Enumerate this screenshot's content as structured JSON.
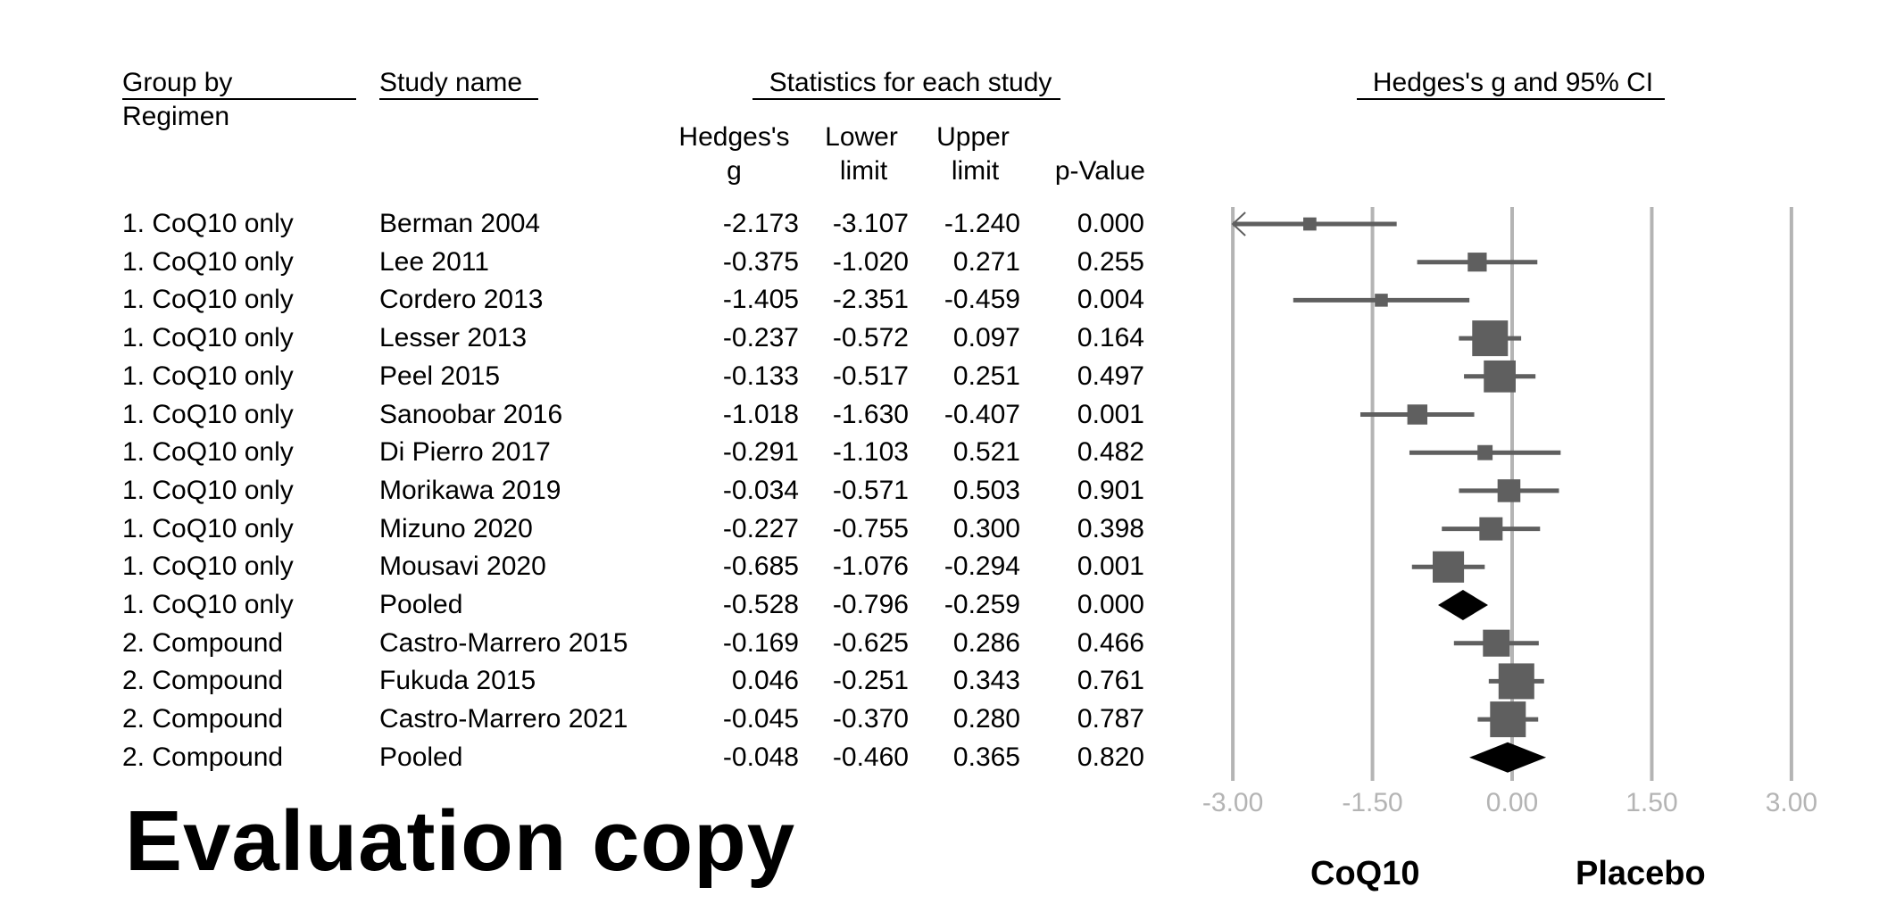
{
  "headers": {
    "group_by": "Group by",
    "regimen": "Regimen",
    "study_name": "Study name",
    "stats": "Statistics for each study",
    "g_1": "Hedges's",
    "g_2": "g",
    "lower_1": "Lower",
    "lower_2": "limit",
    "upper_1": "Upper",
    "upper_2": "limit",
    "p": "p-Value",
    "plot_title": "Hedges's g and 95% CI"
  },
  "chart_data": {
    "type": "forest",
    "title": "Hedges's g and 95% CI",
    "xlim": [
      -3,
      3
    ],
    "xticks": [
      "-3.00",
      "-1.50",
      "0.00",
      "1.50",
      "3.00"
    ],
    "xtick_values": [
      -3,
      -1.5,
      0,
      1.5,
      3
    ],
    "left_label": "CoQ10",
    "right_label": "Placebo",
    "rows": [
      {
        "group": "1. CoQ10 only",
        "study": "Berman 2004",
        "g": "-2.173",
        "lower": "-3.107",
        "upper": "-1.240",
        "p": "0.000",
        "pooled": false
      },
      {
        "group": "1. CoQ10 only",
        "study": "Lee 2011",
        "g": "-0.375",
        "lower": "-1.020",
        "upper": "0.271",
        "p": "0.255",
        "pooled": false
      },
      {
        "group": "1. CoQ10 only",
        "study": "Cordero 2013",
        "g": "-1.405",
        "lower": "-2.351",
        "upper": "-0.459",
        "p": "0.004",
        "pooled": false
      },
      {
        "group": "1. CoQ10 only",
        "study": "Lesser 2013",
        "g": "-0.237",
        "lower": "-0.572",
        "upper": "0.097",
        "p": "0.164",
        "pooled": false
      },
      {
        "group": "1. CoQ10 only",
        "study": "Peel 2015",
        "g": "-0.133",
        "lower": "-0.517",
        "upper": "0.251",
        "p": "0.497",
        "pooled": false
      },
      {
        "group": "1. CoQ10 only",
        "study": "Sanoobar 2016",
        "g": "-1.018",
        "lower": "-1.630",
        "upper": "-0.407",
        "p": "0.001",
        "pooled": false
      },
      {
        "group": "1. CoQ10 only",
        "study": "Di Pierro 2017",
        "g": "-0.291",
        "lower": "-1.103",
        "upper": "0.521",
        "p": "0.482",
        "pooled": false
      },
      {
        "group": "1. CoQ10 only",
        "study": "Morikawa 2019",
        "g": "-0.034",
        "lower": "-0.571",
        "upper": "0.503",
        "p": "0.901",
        "pooled": false
      },
      {
        "group": "1. CoQ10 only",
        "study": "Mizuno 2020",
        "g": "-0.227",
        "lower": "-0.755",
        "upper": "0.300",
        "p": "0.398",
        "pooled": false
      },
      {
        "group": "1. CoQ10 only",
        "study": "Mousavi 2020",
        "g": "-0.685",
        "lower": "-1.076",
        "upper": "-0.294",
        "p": "0.001",
        "pooled": false
      },
      {
        "group": "1. CoQ10 only",
        "study": "Pooled",
        "g": "-0.528",
        "lower": "-0.796",
        "upper": "-0.259",
        "p": "0.000",
        "pooled": true
      },
      {
        "group": "2. Compound",
        "study": "Castro-Marrero 2015",
        "g": "-0.169",
        "lower": "-0.625",
        "upper": "0.286",
        "p": "0.466",
        "pooled": false
      },
      {
        "group": "2. Compound",
        "study": "Fukuda 2015",
        "g": "0.046",
        "lower": "-0.251",
        "upper": "0.343",
        "p": "0.761",
        "pooled": false
      },
      {
        "group": "2. Compound",
        "study": "Castro-Marrero 2021",
        "g": "-0.045",
        "lower": "-0.370",
        "upper": "0.280",
        "p": "0.787",
        "pooled": false
      },
      {
        "group": "2. Compound",
        "study": "Pooled",
        "g": "-0.048",
        "lower": "-0.460",
        "upper": "0.365",
        "p": "0.820",
        "pooled": true
      }
    ],
    "colors": {
      "marker": "#5f5f5f",
      "pooled": "#000000",
      "grid": "#b4b4b4",
      "tick_label": "#b4b4b4"
    }
  },
  "watermark": "Evaluation copy"
}
